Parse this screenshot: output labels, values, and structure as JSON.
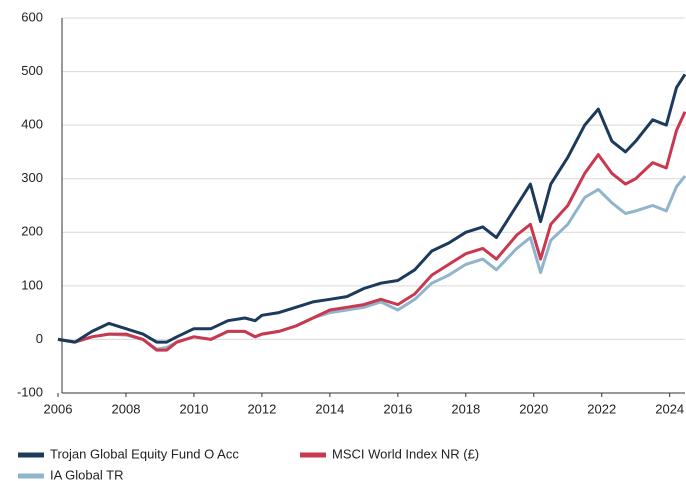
{
  "chart_data": {
    "type": "line",
    "x": [
      2006.0,
      2006.5,
      2007.0,
      2007.5,
      2008.0,
      2008.5,
      2008.9,
      2009.2,
      2009.5,
      2010.0,
      2010.5,
      2011.0,
      2011.5,
      2011.8,
      2012.0,
      2012.5,
      2013.0,
      2013.5,
      2014.0,
      2014.5,
      2015.0,
      2015.5,
      2016.0,
      2016.5,
      2017.0,
      2017.5,
      2018.0,
      2018.5,
      2018.9,
      2019.5,
      2019.9,
      2020.2,
      2020.5,
      2021.0,
      2021.5,
      2021.9,
      2022.3,
      2022.7,
      2023.0,
      2023.5,
      2023.9,
      2024.2,
      2024.45
    ],
    "series": [
      {
        "name": "IA Global TR",
        "color": "#8fb4cc",
        "values": [
          0,
          -5,
          5,
          10,
          8,
          0,
          -18,
          -15,
          -5,
          5,
          0,
          15,
          15,
          5,
          10,
          15,
          25,
          40,
          50,
          55,
          60,
          70,
          55,
          75,
          105,
          120,
          140,
          150,
          130,
          170,
          190,
          125,
          185,
          215,
          265,
          280,
          255,
          235,
          240,
          250,
          240,
          285,
          305
        ]
      },
      {
        "name": "MSCI World Index NR (£)",
        "color": "#c9384f",
        "values": [
          0,
          -5,
          5,
          10,
          10,
          0,
          -20,
          -20,
          -5,
          5,
          0,
          15,
          15,
          5,
          10,
          15,
          25,
          40,
          55,
          60,
          65,
          75,
          65,
          85,
          120,
          140,
          160,
          170,
          150,
          195,
          215,
          150,
          215,
          250,
          310,
          345,
          310,
          290,
          300,
          330,
          320,
          390,
          425
        ]
      },
      {
        "name": "Trojan Global Equity Fund O Acc",
        "color": "#1b3a5c",
        "values": [
          0,
          -5,
          15,
          30,
          20,
          10,
          -5,
          -5,
          5,
          20,
          20,
          35,
          40,
          35,
          45,
          50,
          60,
          70,
          75,
          80,
          95,
          105,
          110,
          130,
          165,
          180,
          200,
          210,
          190,
          250,
          290,
          220,
          290,
          340,
          400,
          430,
          370,
          350,
          370,
          410,
          400,
          470,
          495
        ]
      }
    ],
    "xlim": [
      2006,
      2024.45
    ],
    "xticks": [
      2006,
      2008,
      2010,
      2012,
      2014,
      2016,
      2018,
      2020,
      2022,
      2024
    ],
    "ylim": [
      -100,
      600
    ],
    "yticks": [
      -100,
      0,
      100,
      200,
      300,
      400,
      500,
      600
    ],
    "grid": true
  }
}
